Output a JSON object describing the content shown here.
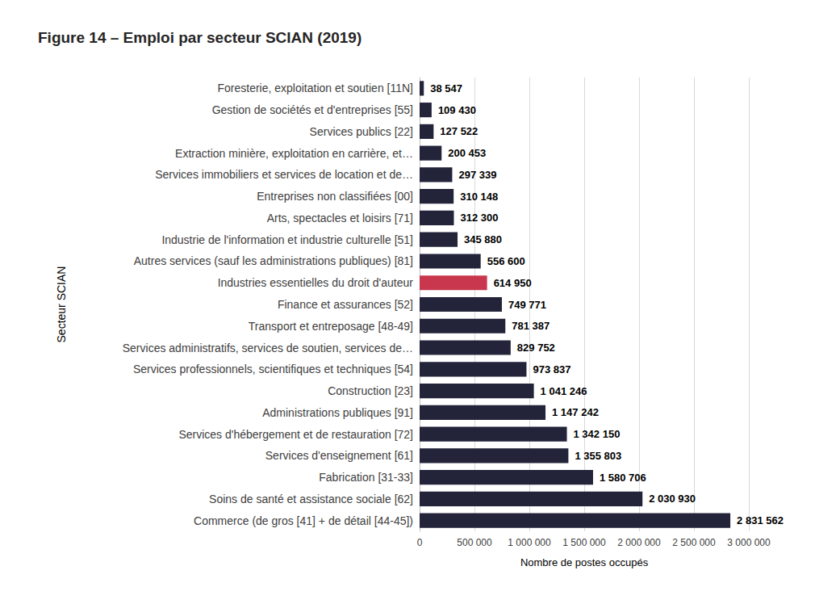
{
  "chart_data": {
    "type": "bar",
    "title": "Figure 14 – Emploi par secteur SCIAN (2019)",
    "orientation": "horizontal",
    "x_label": "Nombre de postes occupés",
    "y_label": "Secteur SCIAN",
    "categories": [
      "Foresterie, exploitation et soutien [11N]",
      "Gestion de sociétés et d'entreprises [55]",
      "Services publics [22]",
      "Extraction minière, exploitation en carrière, et…",
      "Services immobiliers et services de location et de…",
      "Entreprises non classifiées [00]",
      "Arts, spectacles et loisirs [71]",
      "Industrie de l'information et industrie culturelle [51]",
      "Autres services (sauf les administrations publiques) [81]",
      "Industries essentielles du droit d'auteur",
      "Finance et assurances [52]",
      "Transport et entreposage [48-49]",
      "Services administratifs, services de soutien, services de…",
      "Services professionnels, scientifiques et techniques [54]",
      "Construction [23]",
      "Administrations publiques [91]",
      "Services d'hébergement et de restauration [72]",
      "Services d'enseignement [61]",
      "Fabrication [31-33]",
      "Soins de santé et assistance sociale [62]",
      "Commerce (de gros [41] + de détail [44-45])"
    ],
    "values": [
      38547,
      109430,
      127522,
      200453,
      297339,
      310148,
      312300,
      345880,
      556600,
      614950,
      749771,
      781387,
      829752,
      973837,
      1041246,
      1147242,
      1342150,
      1355803,
      1580706,
      2030930,
      2831562
    ],
    "value_labels": [
      "38 547",
      "109 430",
      "127 522",
      "200 453",
      "297 339",
      "310 148",
      "312 300",
      "345 880",
      "556 600",
      "614 950",
      "749 771",
      "781 387",
      "829 752",
      "973 837",
      "1 041 246",
      "1 147 242",
      "1 342 150",
      "1 355 803",
      "1 580 706",
      "2 030 930",
      "2 831 562"
    ],
    "colors": [
      "#23233a",
      "#23233a",
      "#23233a",
      "#23233a",
      "#23233a",
      "#23233a",
      "#23233a",
      "#23233a",
      "#23233a",
      "#c8374d",
      "#23233a",
      "#23233a",
      "#23233a",
      "#23233a",
      "#23233a",
      "#23233a",
      "#23233a",
      "#23233a",
      "#23233a",
      "#23233a",
      "#23233a"
    ],
    "xlim": [
      0,
      3000000
    ],
    "xticks": [
      0,
      {
        "value": 500000,
        "label": "500 000"
      },
      {
        "value": 1000000,
        "label": "1 000 000"
      },
      {
        "value": 1500000,
        "label": "1 500 000"
      },
      {
        "value": 2000000,
        "label": "2 000 000"
      },
      {
        "value": 2500000,
        "label": "2 500 000"
      },
      {
        "value": 3000000,
        "label": "3 000 000"
      }
    ],
    "grid": true,
    "data_labels": true
  }
}
